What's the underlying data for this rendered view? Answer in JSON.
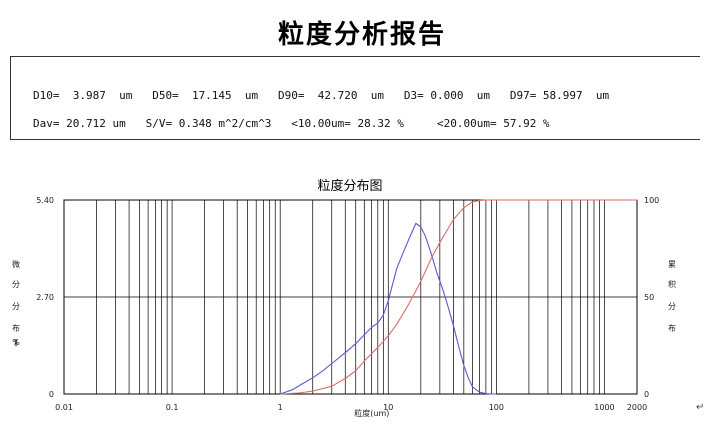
{
  "report": {
    "title": "粒度分析报告",
    "stats_line1": "D10=  3.987  um   D50=  17.145  um   D90=  42.720  um   D3= 0.000  um   D97= 58.997  um",
    "stats_line2": "Dav= 20.712 um   S/V= 0.348 m^2/cm^3   <10.00um= 28.32 %     <20.00um= 57.92 %"
  },
  "chart_data": {
    "type": "line",
    "title": "粒度分布图",
    "xlabel": "粒度(um)",
    "ylabel_left": "微分分布(%)",
    "ylabel_right": "累积分布",
    "x_scale": "log",
    "xlim": [
      0.01,
      2000
    ],
    "ylim_left": [
      0,
      5.4
    ],
    "ylim_right": [
      0,
      100
    ],
    "grid": "vertical",
    "x_tick_labels": [
      "0.01",
      "0.1",
      "1",
      "10",
      "100",
      "1000",
      "2000"
    ],
    "y_left_tick_labels": [
      "0",
      "2.70",
      "5.40"
    ],
    "y_right_tick_labels": [
      "0",
      "50",
      "100"
    ],
    "series": [
      {
        "color": "#5a5ad0",
        "axis": "left",
        "x": [
          1,
          1.3,
          1.6,
          2,
          2.5,
          3,
          4,
          5,
          6,
          7,
          8,
          9,
          10,
          12,
          14,
          16,
          18,
          20,
          22,
          25,
          28,
          32,
          36,
          40,
          45,
          50,
          55,
          60,
          70,
          80,
          90,
          100
        ],
        "y": [
          0,
          0.12,
          0.28,
          0.45,
          0.65,
          0.85,
          1.15,
          1.4,
          1.65,
          1.85,
          1.98,
          2.2,
          2.6,
          3.5,
          4.0,
          4.4,
          4.75,
          4.65,
          4.4,
          3.9,
          3.4,
          2.9,
          2.4,
          1.9,
          1.3,
          0.8,
          0.45,
          0.2,
          0.05,
          0.01,
          0,
          0
        ]
      },
      {
        "color": "#e06a6a",
        "axis": "right",
        "x": [
          1,
          1.5,
          2,
          3,
          4,
          5,
          6,
          8,
          10,
          12,
          15,
          20,
          25,
          30,
          40,
          50,
          60,
          70,
          80,
          100,
          1000,
          2000
        ],
        "y": [
          0,
          0.5,
          1.5,
          4,
          8,
          12,
          17,
          24,
          30,
          36,
          45,
          58,
          70,
          78,
          90,
          96,
          99,
          99.8,
          100,
          100,
          100,
          100
        ]
      }
    ]
  }
}
